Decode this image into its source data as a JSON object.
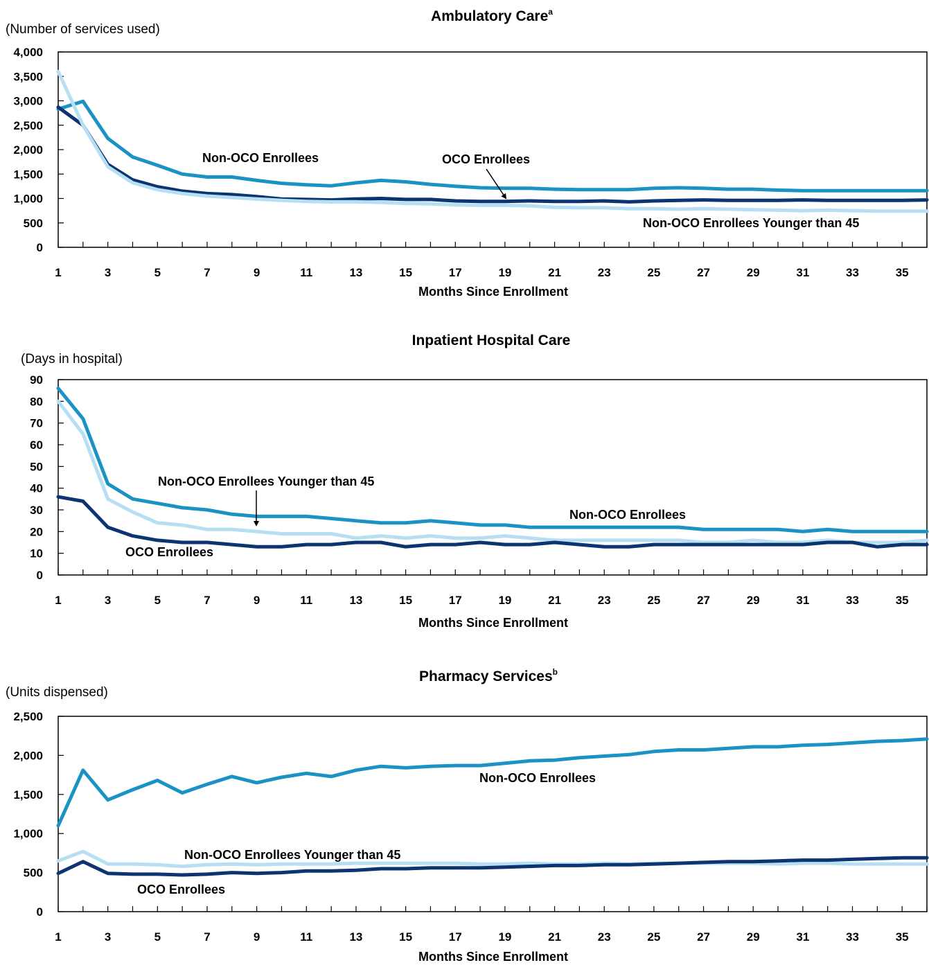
{
  "colors": {
    "non_oco": "#1a93c4",
    "oco": "#0b3470",
    "non_oco_young": "#b7dff3",
    "frame": "#000000"
  },
  "chart_data": [
    {
      "type": "line",
      "title": "Ambulatory Care",
      "title_superscript": "a",
      "ylabel": "(Number of services used)",
      "xlabel": "Months Since Enrollment",
      "ylim": [
        0,
        4000
      ],
      "yticks": [
        0,
        500,
        1000,
        1500,
        2000,
        2500,
        3000,
        3500,
        4000
      ],
      "ytick_labels": [
        "0",
        "500",
        "1,000",
        "1,500",
        "2,000",
        "2,500",
        "3,000",
        "3,500",
        "4,000"
      ],
      "xlim": [
        1,
        36
      ],
      "xticks": [
        1,
        3,
        5,
        7,
        9,
        11,
        13,
        15,
        17,
        19,
        21,
        23,
        25,
        27,
        29,
        31,
        33,
        35
      ],
      "grid": false,
      "series": [
        {
          "name": "Non-OCO Enrollees",
          "color_key": "non_oco",
          "values": [
            2830,
            2990,
            2230,
            1850,
            1680,
            1500,
            1440,
            1440,
            1370,
            1310,
            1280,
            1260,
            1320,
            1370,
            1340,
            1290,
            1250,
            1220,
            1210,
            1210,
            1190,
            1180,
            1180,
            1180,
            1210,
            1220,
            1210,
            1190,
            1190,
            1170,
            1160,
            1160,
            1160,
            1160,
            1160,
            1160
          ]
        },
        {
          "name": "OCO Enrollees",
          "color_key": "oco",
          "values": [
            2870,
            2500,
            1700,
            1380,
            1240,
            1150,
            1100,
            1080,
            1040,
            990,
            980,
            970,
            990,
            1000,
            980,
            980,
            950,
            940,
            940,
            950,
            940,
            940,
            950,
            930,
            950,
            960,
            970,
            960,
            960,
            960,
            970,
            960,
            960,
            960,
            960,
            970
          ]
        },
        {
          "name": "Non-OCO Enrollees Younger than 45",
          "color_key": "non_oco_young",
          "values": [
            3600,
            2500,
            1650,
            1320,
            1180,
            1100,
            1050,
            1020,
            990,
            960,
            940,
            930,
            930,
            920,
            900,
            890,
            870,
            860,
            860,
            850,
            820,
            810,
            810,
            790,
            790,
            780,
            790,
            780,
            770,
            760,
            750,
            760,
            750,
            740,
            740,
            740
          ]
        }
      ],
      "annotations": [
        {
          "text": "Non-OCO Enrollees",
          "series": 0
        },
        {
          "text": "OCO Enrollees",
          "series": 1
        },
        {
          "text": "Non-OCO Enrollees Younger than 45",
          "series": 2
        }
      ]
    },
    {
      "type": "line",
      "title": "Inpatient Hospital Care",
      "ylabel": "(Days in hospital)",
      "xlabel": "Months Since Enrollment",
      "ylim": [
        0,
        90
      ],
      "yticks": [
        0,
        10,
        20,
        30,
        40,
        50,
        60,
        70,
        80,
        90
      ],
      "ytick_labels": [
        "0",
        "10",
        "20",
        "30",
        "40",
        "50",
        "60",
        "70",
        "80",
        "90"
      ],
      "xlim": [
        1,
        36
      ],
      "xticks": [
        1,
        3,
        5,
        7,
        9,
        11,
        13,
        15,
        17,
        19,
        21,
        23,
        25,
        27,
        29,
        31,
        33,
        35
      ],
      "grid": false,
      "series": [
        {
          "name": "Non-OCO Enrollees",
          "color_key": "non_oco",
          "values": [
            86,
            72,
            42,
            35,
            33,
            31,
            30,
            28,
            27,
            27,
            27,
            26,
            25,
            24,
            24,
            25,
            24,
            23,
            23,
            22,
            22,
            22,
            22,
            22,
            22,
            22,
            21,
            21,
            21,
            21,
            20,
            21,
            20,
            20,
            20,
            20
          ]
        },
        {
          "name": "Non-OCO Enrollees Younger than 45",
          "color_key": "non_oco_young",
          "values": [
            80,
            65,
            35,
            29,
            24,
            23,
            21,
            21,
            20,
            19,
            19,
            19,
            17,
            18,
            17,
            18,
            17,
            17,
            18,
            17,
            16,
            16,
            16,
            16,
            16,
            16,
            15,
            15,
            16,
            15,
            15,
            16,
            15,
            15,
            15,
            16
          ]
        },
        {
          "name": "OCO Enrollees",
          "color_key": "oco",
          "values": [
            36,
            34,
            22,
            18,
            16,
            15,
            15,
            14,
            13,
            13,
            14,
            14,
            15,
            15,
            13,
            14,
            14,
            15,
            14,
            14,
            15,
            14,
            13,
            13,
            14,
            14,
            14,
            14,
            14,
            14,
            14,
            15,
            15,
            13,
            14,
            14
          ]
        }
      ],
      "annotations": [
        {
          "text": "Non-OCO Enrollees Younger than 45",
          "series": 1
        },
        {
          "text": "Non-OCO Enrollees",
          "series": 0
        },
        {
          "text": "OCO Enrollees",
          "series": 2
        }
      ]
    },
    {
      "type": "line",
      "title": "Pharmacy Services",
      "title_superscript": "b",
      "ylabel": "(Units dispensed)",
      "xlabel": "Months Since Enrollment",
      "ylim": [
        0,
        2500
      ],
      "yticks": [
        0,
        500,
        1000,
        1500,
        2000,
        2500
      ],
      "ytick_labels": [
        "0",
        "500",
        "1,000",
        "1,500",
        "2,000",
        "2,500"
      ],
      "xlim": [
        1,
        36
      ],
      "xticks": [
        1,
        3,
        5,
        7,
        9,
        11,
        13,
        15,
        17,
        19,
        21,
        23,
        25,
        27,
        29,
        31,
        33,
        35
      ],
      "grid": false,
      "series": [
        {
          "name": "Non-OCO Enrollees",
          "color_key": "non_oco",
          "values": [
            1100,
            1810,
            1430,
            1560,
            1680,
            1520,
            1630,
            1730,
            1650,
            1720,
            1770,
            1730,
            1810,
            1860,
            1840,
            1860,
            1870,
            1870,
            1900,
            1930,
            1940,
            1970,
            1990,
            2010,
            2050,
            2070,
            2070,
            2090,
            2110,
            2110,
            2130,
            2140,
            2160,
            2180,
            2190,
            2210
          ]
        },
        {
          "name": "Non-OCO Enrollees Younger than 45",
          "color_key": "non_oco_young",
          "values": [
            650,
            770,
            610,
            610,
            600,
            580,
            600,
            610,
            600,
            610,
            610,
            610,
            620,
            620,
            620,
            620,
            620,
            610,
            610,
            620,
            610,
            610,
            620,
            610,
            620,
            620,
            620,
            620,
            620,
            610,
            620,
            620,
            610,
            610,
            610,
            610
          ]
        },
        {
          "name": "OCO Enrollees",
          "color_key": "oco",
          "values": [
            490,
            640,
            490,
            480,
            480,
            470,
            480,
            500,
            490,
            500,
            520,
            520,
            530,
            550,
            550,
            560,
            560,
            560,
            570,
            580,
            590,
            590,
            600,
            600,
            610,
            620,
            630,
            640,
            640,
            650,
            660,
            660,
            670,
            680,
            690,
            690
          ]
        }
      ],
      "annotations": [
        {
          "text": "Non-OCO Enrollees",
          "series": 0
        },
        {
          "text": "Non-OCO Enrollees Younger than 45",
          "series": 1
        },
        {
          "text": "OCO Enrollees",
          "series": 2
        }
      ]
    }
  ]
}
